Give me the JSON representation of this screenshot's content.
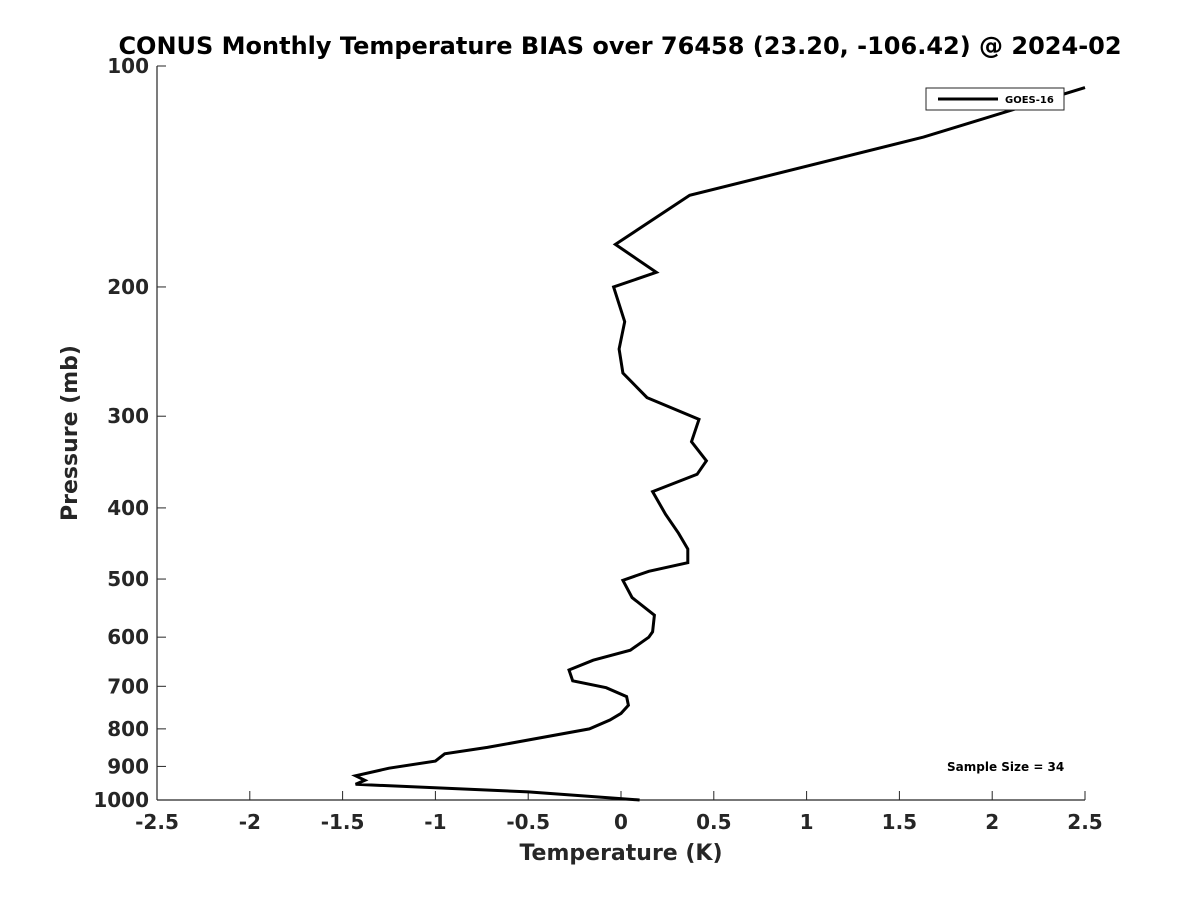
{
  "chart_data": {
    "type": "line",
    "title": "CONUS Monthly Temperature BIAS over 76458 (23.20, -106.42) @ 2024-02",
    "xlabel": "Temperature (K)",
    "ylabel": "Pressure (mb)",
    "xlim": [
      -2.5,
      2.5
    ],
    "ylim": [
      1000,
      100
    ],
    "y_scale": "log",
    "y_reversed": true,
    "grid": false,
    "x_ticks": [
      "-2.5",
      "-2",
      "-1.5",
      "-1",
      "-0.5",
      "0",
      "0.5",
      "1",
      "1.5",
      "2",
      "2.5"
    ],
    "y_ticks": [
      "100",
      "200",
      "300",
      "400",
      "500",
      "600",
      "700",
      "800",
      "900",
      "1000"
    ],
    "legend_position": "top-right",
    "annotation": "Sample Size = 34",
    "series": [
      {
        "name": "GOES-16",
        "color": "#000000",
        "points": [
          [
            2.5,
            107
          ],
          [
            1.63,
            125
          ],
          [
            0.37,
            150
          ],
          [
            -0.03,
            175
          ],
          [
            0.19,
            191
          ],
          [
            -0.04,
            200
          ],
          [
            0.02,
            223
          ],
          [
            -0.01,
            243
          ],
          [
            0.01,
            262
          ],
          [
            0.14,
            283
          ],
          [
            0.42,
            303
          ],
          [
            0.38,
            325
          ],
          [
            0.46,
            345
          ],
          [
            0.41,
            360
          ],
          [
            0.17,
            380
          ],
          [
            0.24,
            408
          ],
          [
            0.31,
            433
          ],
          [
            0.36,
            455
          ],
          [
            0.36,
            475
          ],
          [
            0.15,
            488
          ],
          [
            0.01,
            502
          ],
          [
            0.06,
            530
          ],
          [
            0.18,
            560
          ],
          [
            0.17,
            590
          ],
          [
            0.15,
            600
          ],
          [
            0.05,
            625
          ],
          [
            -0.15,
            645
          ],
          [
            -0.28,
            665
          ],
          [
            -0.26,
            688
          ],
          [
            -0.08,
            703
          ],
          [
            0.03,
            723
          ],
          [
            0.04,
            743
          ],
          [
            0.0,
            762
          ],
          [
            -0.06,
            778
          ],
          [
            -0.17,
            800
          ],
          [
            -0.72,
            848
          ],
          [
            -0.95,
            865
          ],
          [
            -1.0,
            885
          ],
          [
            -1.25,
            905
          ],
          [
            -1.43,
            927
          ],
          [
            -1.38,
            940
          ],
          [
            -1.43,
            952
          ],
          [
            -0.5,
            975
          ],
          [
            0.1,
            1000
          ]
        ]
      }
    ]
  }
}
